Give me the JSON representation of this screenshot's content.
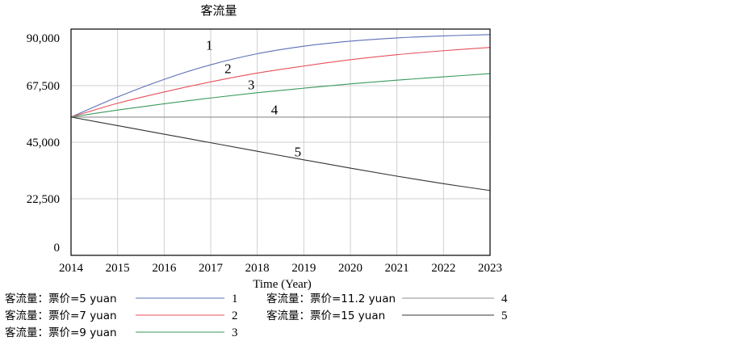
{
  "chart_data": {
    "type": "line",
    "title": "客流量",
    "xlabel": "Time (Year)",
    "ylabel": "",
    "x": [
      2014,
      2015,
      2016,
      2017,
      2018,
      2019,
      2020,
      2021,
      2022,
      2023
    ],
    "x_ticks": [
      "2014",
      "2015",
      "2016",
      "2017",
      "2018",
      "2019",
      "2020",
      "2021",
      "2022",
      "2023"
    ],
    "y_ticks": [
      "0",
      "22,500",
      "45,000",
      "67,500",
      "90,000"
    ],
    "ylim": [
      0,
      90000
    ],
    "grid": true,
    "legend_position": "bottom",
    "series": [
      {
        "name": "客流量：票价=5 yuan",
        "label": "1",
        "color": "#5b6fb8",
        "values": [
          55000,
          63000,
          70000,
          75800,
          80200,
          83200,
          85200,
          86500,
          87300,
          87800
        ]
      },
      {
        "name": "客流量：票价=7 yuan",
        "label": "2",
        "color": "#e8505b",
        "values": [
          55000,
          60500,
          65000,
          69000,
          72500,
          75300,
          77800,
          79800,
          81400,
          82700
        ]
      },
      {
        "name": "客流量：票价=9 yuan",
        "label": "3",
        "color": "#3a9a5c",
        "values": [
          55000,
          57800,
          60300,
          62600,
          64700,
          66500,
          68200,
          69700,
          71000,
          72300
        ]
      },
      {
        "name": "客流量：票价=11.2 yuan",
        "label": "4",
        "color": "#8c8c8c",
        "values": [
          55000,
          55000,
          55000,
          55000,
          55000,
          55000,
          55000,
          55000,
          55000,
          55000
        ]
      },
      {
        "name": "客流量：票价=15 yuan",
        "label": "5",
        "color": "#333333",
        "values": [
          55000,
          51600,
          48200,
          44800,
          41400,
          38000,
          34700,
          31500,
          28500,
          25800
        ]
      }
    ]
  }
}
